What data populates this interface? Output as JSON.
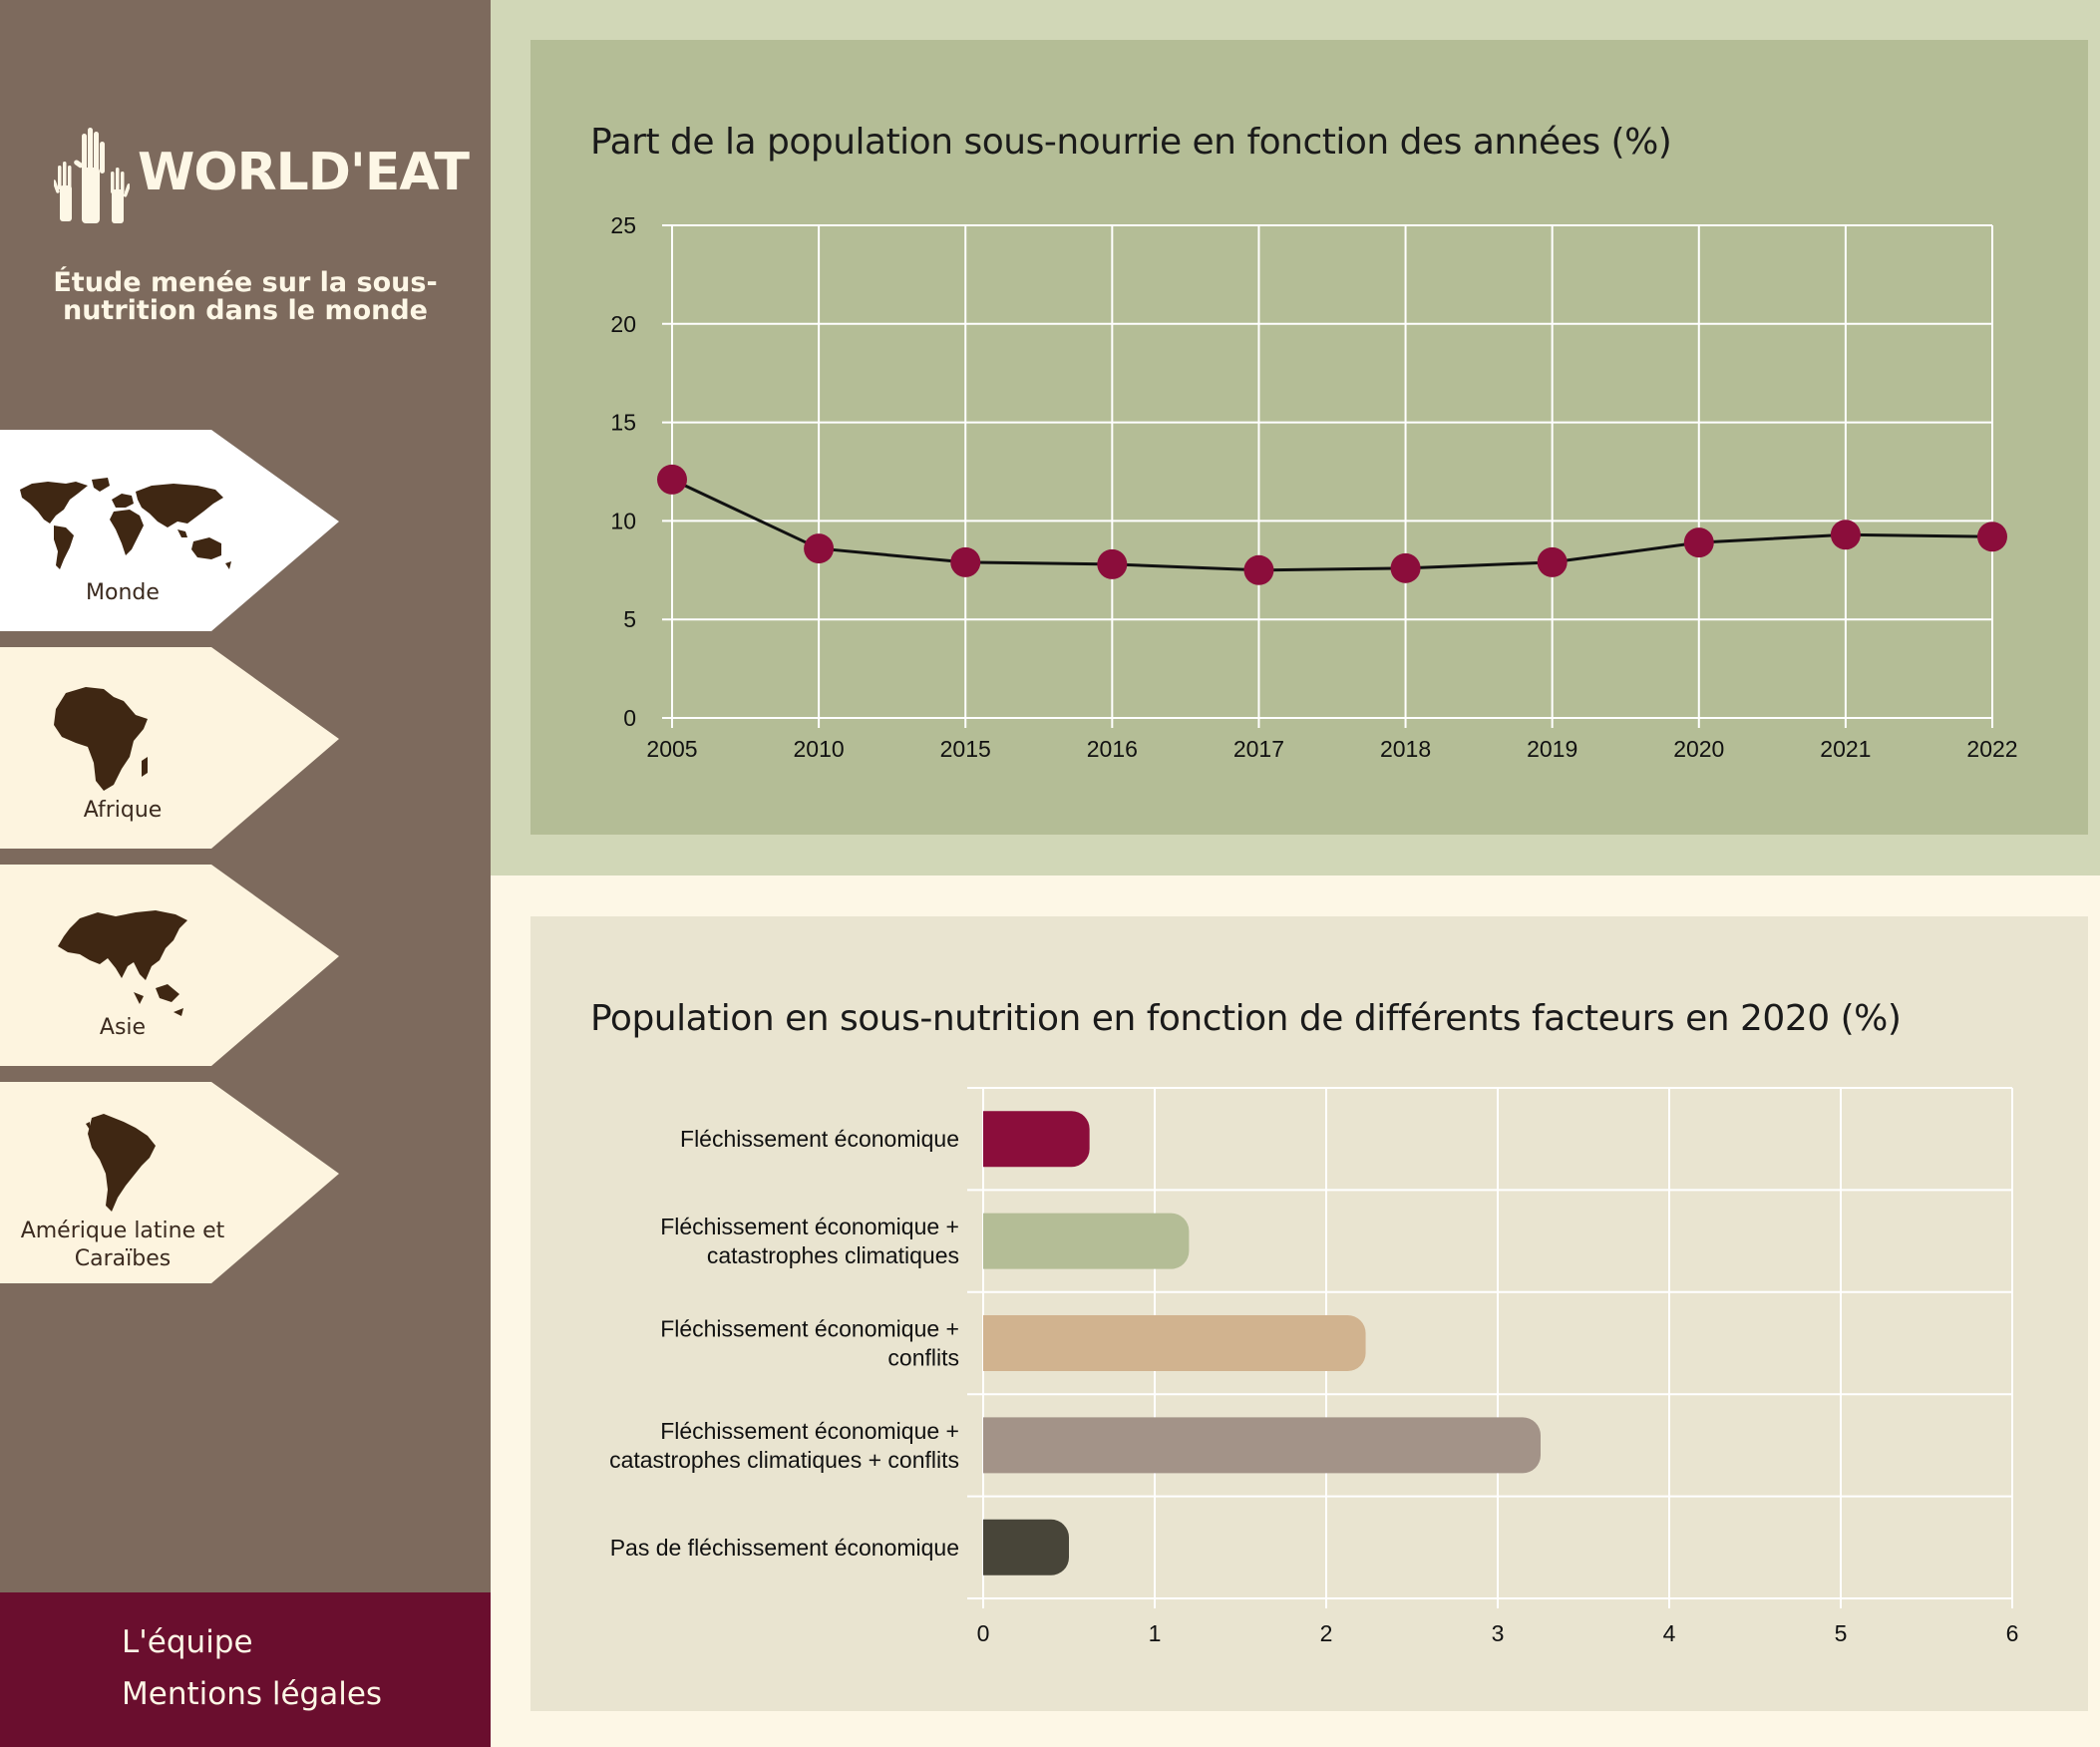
{
  "app": {
    "logo_text": "WORLD'EAT",
    "tagline": "Étude menée sur la sous-nutrition dans le monde"
  },
  "sidebar": {
    "items": [
      {
        "label": "Monde",
        "icon": "world-map-icon",
        "active": true
      },
      {
        "label": "Afrique",
        "icon": "africa-map-icon",
        "active": false
      },
      {
        "label": "Asie",
        "icon": "asia-map-icon",
        "active": false
      },
      {
        "label": "Amérique latine et Caraïbes",
        "icon": "south-america-map-icon",
        "active": false
      }
    ],
    "footer": {
      "team_label": "L'équipe",
      "legal_label": "Mentions légales"
    }
  },
  "charts": {
    "line": {
      "title": "Part de la population sous-nourrie en fonction des années (%)"
    },
    "bar": {
      "title": "Population en sous-nutrition en fonction de différents facteurs en 2020 (%)"
    }
  },
  "colors": {
    "sidebar": "#7d6a5d",
    "footer": "#6a0e2e",
    "line_panel": "#b4bd96",
    "bar_panel": "#e9e4d0",
    "marker": "#8b0d3b",
    "map_fill": "#3f2713"
  },
  "chart_data": [
    {
      "type": "line",
      "title": "Part de la population sous-nourrie en fonction des années (%)",
      "categories": [
        "2005",
        "2010",
        "2015",
        "2016",
        "2017",
        "2018",
        "2019",
        "2020",
        "2021",
        "2022"
      ],
      "values": [
        12.1,
        8.6,
        7.9,
        7.8,
        7.5,
        7.6,
        7.9,
        8.9,
        9.3,
        9.2
      ],
      "yticks": [
        "0",
        "5",
        "10",
        "15",
        "20",
        "25"
      ],
      "ylim": [
        0,
        25
      ],
      "grid": true,
      "marker_color": "#8b0d3b",
      "line_color": "#111111"
    },
    {
      "type": "bar",
      "orientation": "horizontal",
      "title": "Population en sous-nutrition en fonction de différents facteurs en 2020 (%)",
      "categories": [
        [
          "Fléchissement économique"
        ],
        [
          "Fléchissement économique +",
          "catastrophes climatiques"
        ],
        [
          "Fléchissement économique +",
          "conflits"
        ],
        [
          "Fléchissement économique +",
          "catastrophes climatiques + conflits"
        ],
        [
          "Pas de fléchissement économique"
        ]
      ],
      "values": [
        0.62,
        1.2,
        2.23,
        3.25,
        0.5
      ],
      "bar_colors": [
        "#8b0d3b",
        "#b4bd96",
        "#d1b38f",
        "#a39388",
        "#484539"
      ],
      "xticks": [
        "0",
        "1",
        "2",
        "3",
        "4",
        "5",
        "6"
      ],
      "xlim": [
        0,
        6
      ],
      "grid": true
    }
  ]
}
